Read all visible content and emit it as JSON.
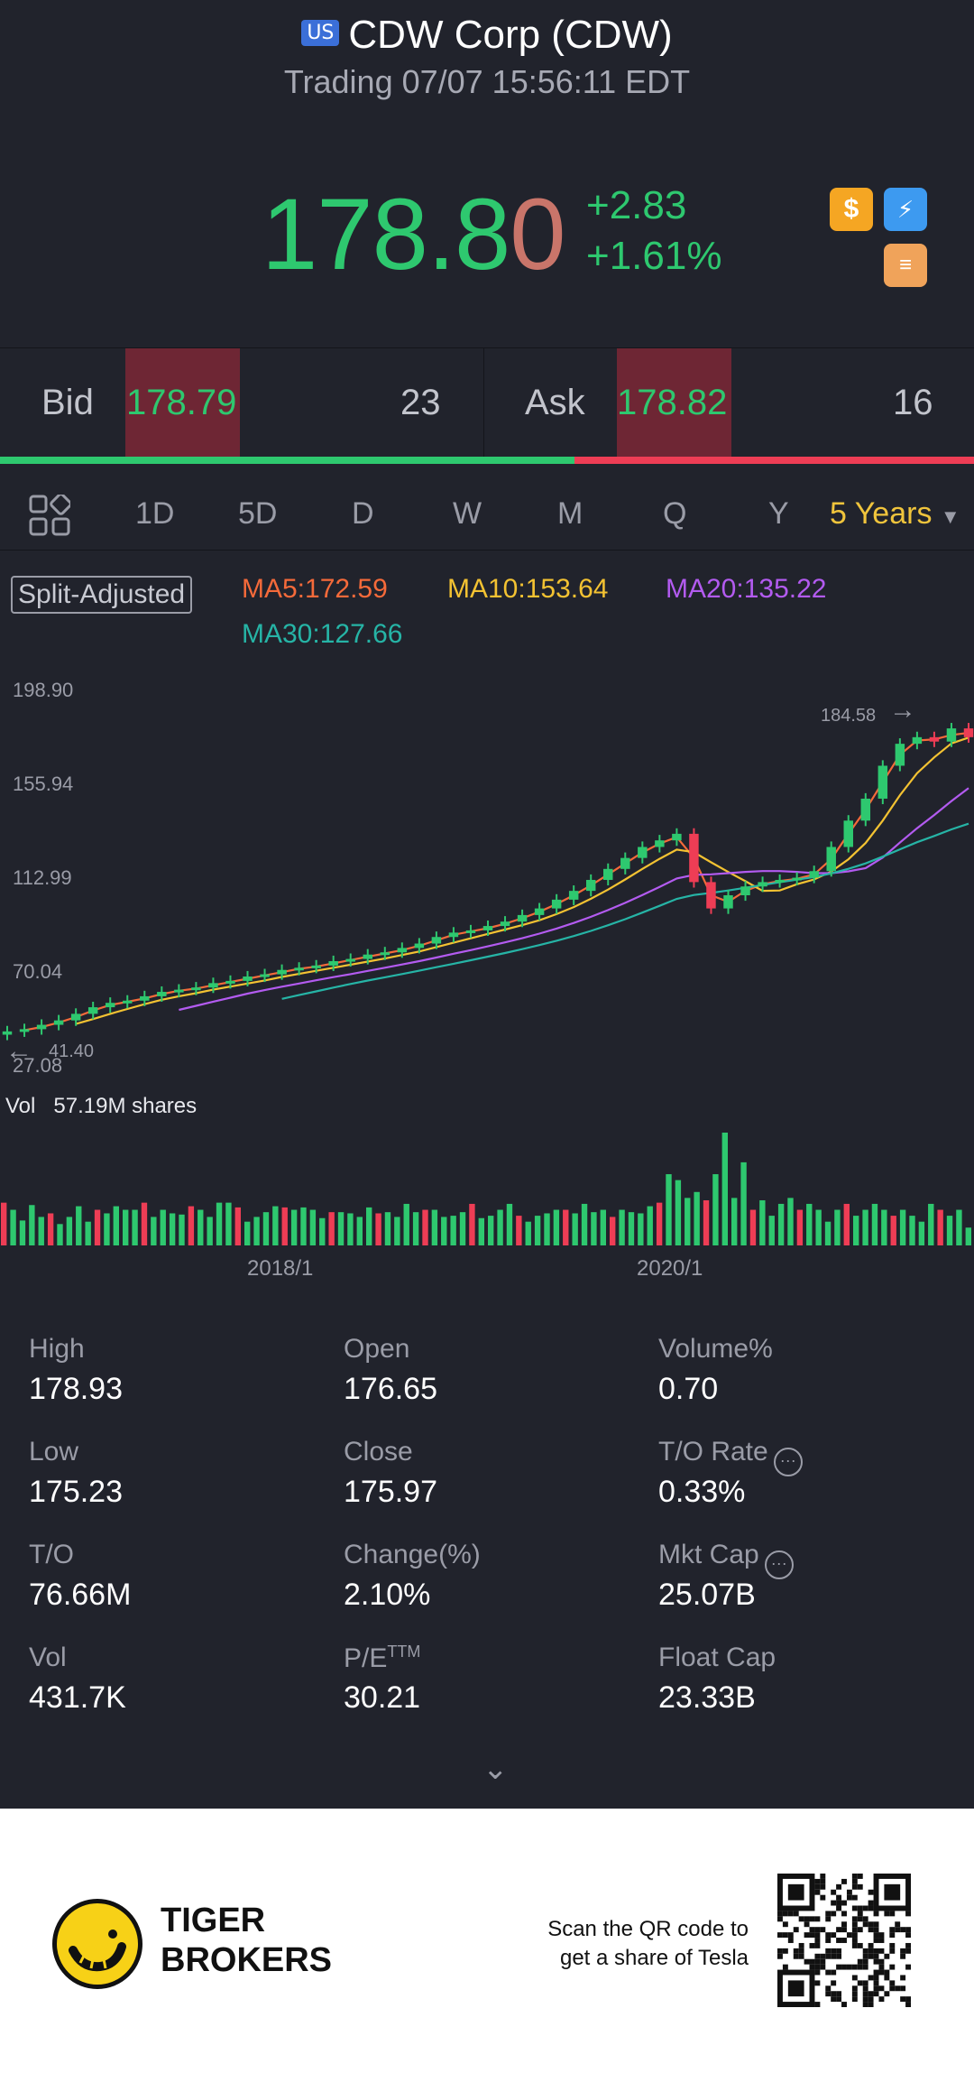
{
  "header": {
    "badge": "US",
    "title": "CDW Corp (CDW)",
    "status": "Trading 07/07 15:56:11 EDT",
    "price_main": "178.8",
    "price_last": "0",
    "change_abs": "+2.83",
    "change_pct": "+1.61%",
    "icons": [
      "dollar-icon",
      "lightning-icon",
      "layers-icon"
    ]
  },
  "quote": {
    "bid_label": "Bid",
    "bid_price": "178.79",
    "bid_qty": "23",
    "ask_label": "Ask",
    "ask_price": "178.82",
    "ask_qty": "16",
    "bid_share": 0.59
  },
  "tabs": [
    "1D",
    "5D",
    "D",
    "W",
    "M",
    "Q",
    "Y"
  ],
  "active_tab": "5 Years",
  "indicators": {
    "split": "Split-Adjusted",
    "ma5": "MA5:172.59",
    "ma10": "MA10:153.64",
    "ma20": "MA20:135.22",
    "ma30": "MA30:127.66"
  },
  "colors": {
    "up": "#2ec86f",
    "down": "#ee3d55",
    "ma5": "#f56a3a",
    "ma10": "#f3c232",
    "ma20": "#b35bf0",
    "ma30": "#26b4a6",
    "accent": "#f0c43c"
  },
  "chart_data": {
    "type": "candlestick",
    "y_ticks": [
      "198.90",
      "155.94",
      "112.99",
      "70.04",
      "27.08"
    ],
    "ylim": [
      27.08,
      198.9
    ],
    "x_ticks": [
      "2018/1",
      "2020/1"
    ],
    "max_label": "184.58",
    "min_label": "41.40",
    "volume_label": "Vol",
    "volume_value": "57.19M shares",
    "closes": [
      44,
      45,
      47,
      49,
      52,
      55,
      57,
      58,
      60,
      62,
      63,
      64,
      66,
      67,
      69,
      70,
      72,
      73,
      74,
      76,
      77,
      79,
      80,
      82,
      84,
      87,
      89,
      90,
      92,
      94,
      97,
      100,
      104,
      108,
      113,
      118,
      123,
      128,
      131,
      134,
      112,
      100,
      106,
      110,
      112,
      113,
      114,
      117,
      128,
      140,
      150,
      165,
      175,
      178,
      176,
      182,
      178
    ],
    "volumes": [
      36,
      30,
      21,
      34,
      24,
      27,
      18,
      24,
      33,
      20,
      30,
      27,
      33,
      30,
      30,
      36,
      24,
      30,
      27,
      26,
      33,
      30,
      24,
      36,
      36,
      32,
      20,
      24,
      28,
      33,
      32,
      30,
      32,
      30,
      23,
      28,
      28,
      27,
      24,
      32,
      27,
      28,
      24,
      35,
      28,
      30,
      30,
      24,
      25,
      28,
      35,
      23,
      25,
      30,
      35,
      25,
      20,
      25,
      27,
      30,
      30,
      27,
      35,
      28,
      30,
      24,
      30,
      28,
      27,
      33,
      36,
      60,
      55,
      40,
      45,
      38,
      60,
      95,
      40,
      70,
      30,
      38,
      25,
      35,
      40,
      30,
      35,
      30,
      20,
      30,
      35,
      25,
      30,
      35,
      30,
      25,
      30,
      25,
      20,
      35,
      30,
      25,
      30,
      15
    ]
  },
  "stats": [
    {
      "label": "High",
      "value": "178.93"
    },
    {
      "label": "Open",
      "value": "176.65"
    },
    {
      "label": "Volume%",
      "value": "0.70"
    },
    {
      "label": "Low",
      "value": "175.23"
    },
    {
      "label": "Close",
      "value": "175.97"
    },
    {
      "label": "T/O Rate",
      "value": "0.33%"
    },
    {
      "label": "T/O",
      "value": "76.66M"
    },
    {
      "label": "Change(%)",
      "value": "2.10%"
    },
    {
      "label": "Mkt Cap",
      "value": "25.07B"
    },
    {
      "label": "Vol",
      "value": "431.7K"
    },
    {
      "label": "P/E",
      "value": "30.21"
    },
    {
      "label": "Float Cap",
      "value": "23.33B"
    }
  ],
  "pe_suffix": "TTM",
  "footer": {
    "brand_line1": "TIGER",
    "brand_line2": "BROKERS",
    "scan_line1": "Scan the QR code to",
    "scan_line2": "get a share of Tesla"
  }
}
